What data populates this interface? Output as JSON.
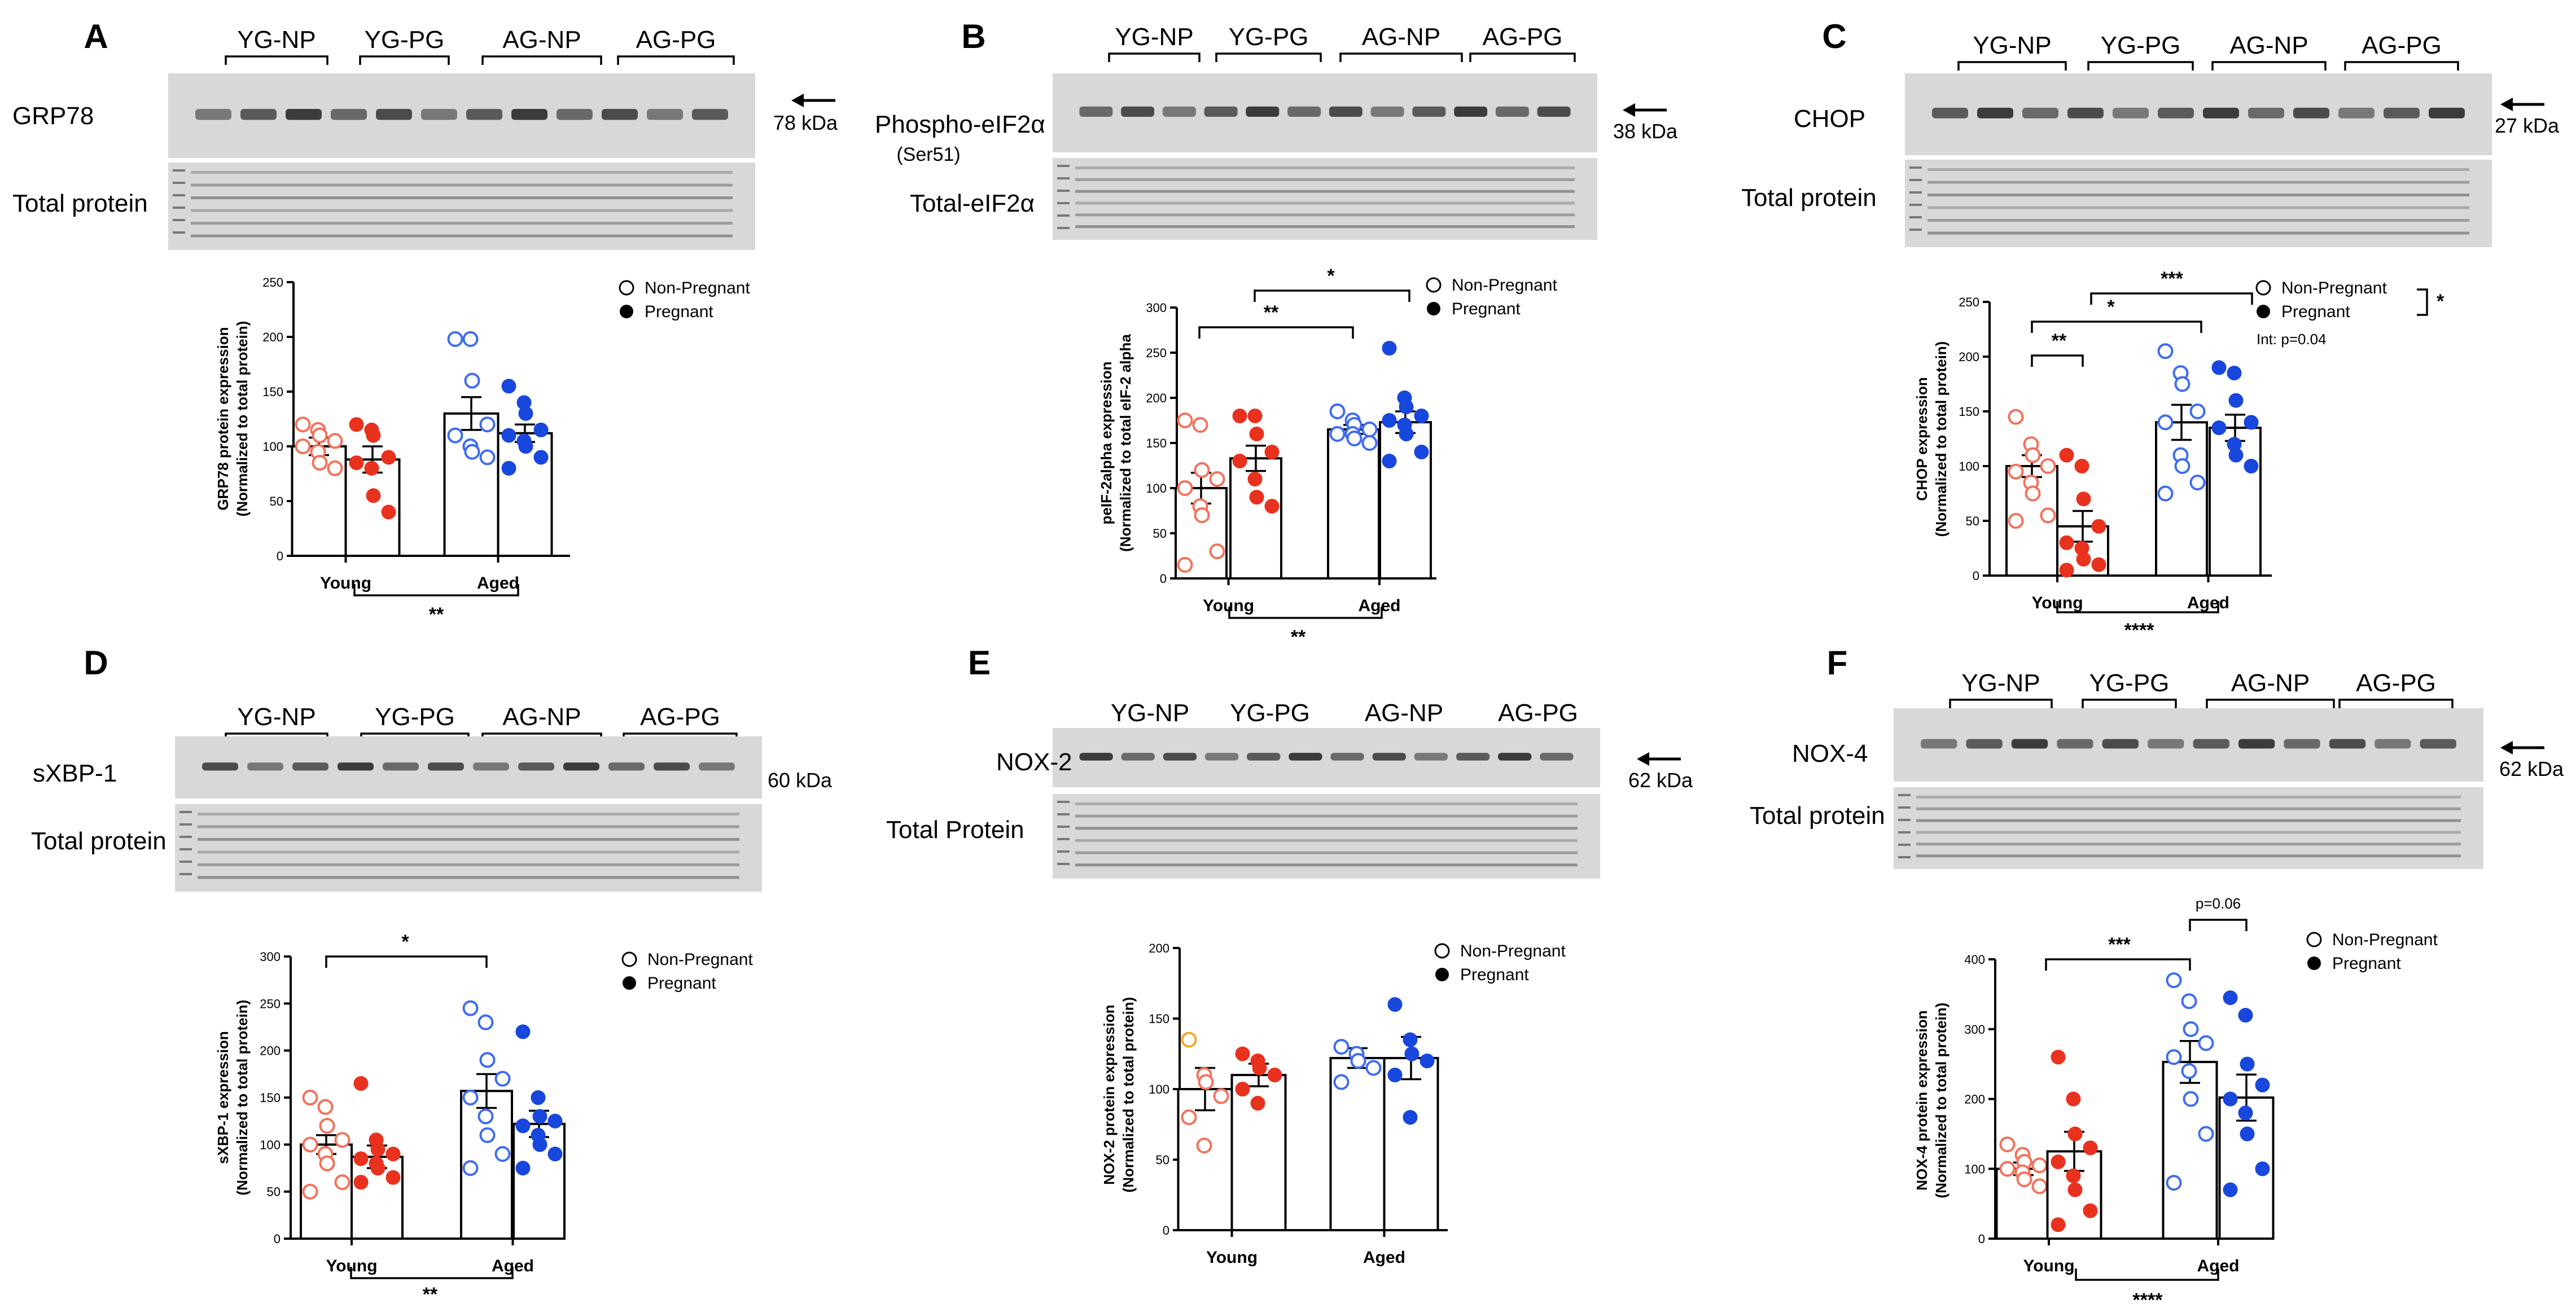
{
  "colors": {
    "young_open": "#f4715a",
    "young_filled": "#e8321e",
    "young_outlier": "#f4a628",
    "aged_open": "#3d6cf0",
    "aged_filled": "#1847dd",
    "blot_bg": "#d8d8d8",
    "band": "#2a2a2a"
  },
  "panels": [
    {
      "letter": "A",
      "group_labels": [
        "YG-NP",
        "YG-PG",
        "AG-NP",
        "AG-PG"
      ],
      "blot_top_label": "GRP78",
      "blot_top_sub": "",
      "kda": "78 kDa",
      "blot_bottom_label": "Total protein",
      "legend": [
        "Non-Pregnant",
        "Pregnant"
      ],
      "interaction_note": "",
      "bracket_labels": [
        "**"
      ]
    },
    {
      "letter": "B",
      "group_labels": [
        "YG-NP",
        "YG-PG",
        "AG-NP",
        "AG-PG"
      ],
      "blot_top_label": "Phospho-eIF2α",
      "blot_top_sub": "(Ser51)",
      "kda": "38 kDa",
      "blot_bottom_label": "Total-eIF2α",
      "legend": [
        "Non-Pregnant",
        "Pregnant"
      ],
      "interaction_note": "",
      "bracket_labels": [
        "*",
        "**",
        "**"
      ]
    },
    {
      "letter": "C",
      "group_labels": [
        "YG-NP",
        "YG-PG",
        "AG-NP",
        "AG-PG"
      ],
      "blot_top_label": "CHOP",
      "blot_top_sub": "",
      "kda": "27 kDa",
      "blot_bottom_label": "Total protein",
      "legend": [
        "Non-Pregnant",
        "Pregnant"
      ],
      "interaction_note": "Int: p=0.04",
      "bracket_labels": [
        "***",
        "*",
        "**",
        "****",
        "*"
      ]
    },
    {
      "letter": "D",
      "group_labels": [
        "YG-NP",
        "YG-PG",
        "AG-NP",
        "AG-PG"
      ],
      "blot_top_label": "sXBP-1",
      "blot_top_sub": "",
      "kda": "60 kDa",
      "blot_bottom_label": "Total protein",
      "legend": [
        "Non-Pregnant",
        "Pregnant"
      ],
      "interaction_note": "",
      "bracket_labels": [
        "*",
        "**"
      ]
    },
    {
      "letter": "E",
      "group_labels": [
        "YG-NP",
        "YG-PG",
        "AG-NP",
        "AG-PG"
      ],
      "blot_top_label": "NOX-2",
      "blot_top_sub": "",
      "kda": "62 kDa",
      "blot_bottom_label": "Total Protein",
      "legend": [
        "Non-Pregnant",
        "Pregnant"
      ],
      "interaction_note": "",
      "bracket_labels": []
    },
    {
      "letter": "F",
      "group_labels": [
        "YG-NP",
        "YG-PG",
        "AG-NP",
        "AG-PG"
      ],
      "blot_top_label": "NOX-4",
      "blot_top_sub": "",
      "kda": "62 kDa",
      "blot_bottom_label": "Total protein",
      "legend": [
        "Non-Pregnant",
        "Pregnant"
      ],
      "interaction_note": "",
      "bracket_labels": [
        "p=0.06",
        "***",
        "****"
      ]
    }
  ],
  "chart_data": [
    {
      "type": "bar",
      "panel": "A",
      "categories": [
        "Young",
        "Aged"
      ],
      "ylabel": "GRP78 protein expression\n(Normalized to total protein)",
      "ylim": [
        0,
        250
      ],
      "yticks": [
        0,
        50,
        100,
        150,
        200,
        250
      ],
      "series": [
        {
          "name": "Non-Pregnant",
          "values": [
            100,
            130
          ],
          "sem": [
            8,
            15
          ]
        },
        {
          "name": "Pregnant",
          "values": [
            88,
            112
          ],
          "sem": [
            12,
            8
          ]
        }
      ],
      "points": {
        "young_np": [
          120,
          115,
          110,
          105,
          100,
          95,
          85,
          80
        ],
        "young_pg": [
          120,
          115,
          110,
          90,
          85,
          80,
          55,
          40
        ],
        "aged_np": [
          198,
          198,
          160,
          120,
          110,
          100,
          95,
          90
        ],
        "aged_pg": [
          155,
          140,
          130,
          115,
          110,
          105,
          100,
          90,
          80
        ]
      },
      "comparisons": [
        {
          "label": "**",
          "between": "Young vs Aged"
        }
      ],
      "legend": "top-right"
    },
    {
      "type": "bar",
      "panel": "B",
      "categories": [
        "Young",
        "Aged"
      ],
      "ylabel": "peIF-2alpha expression\n(Normalized to total eIF-2 alpha",
      "ylim": [
        0,
        300
      ],
      "yticks": [
        0,
        50,
        100,
        150,
        200,
        250,
        300
      ],
      "series": [
        {
          "name": "Non-Pregnant",
          "values": [
            100,
            165
          ],
          "sem": [
            17,
            5
          ]
        },
        {
          "name": "Pregnant",
          "values": [
            133,
            173
          ],
          "sem": [
            14,
            12
          ]
        }
      ],
      "points": {
        "young_np": [
          175,
          170,
          120,
          110,
          100,
          80,
          70,
          30,
          15
        ],
        "young_pg": [
          180,
          180,
          160,
          140,
          130,
          110,
          90,
          80
        ],
        "aged_np": [
          185,
          175,
          170,
          165,
          160,
          160,
          155,
          150
        ],
        "aged_pg": [
          255,
          200,
          190,
          180,
          175,
          170,
          160,
          140,
          130
        ]
      },
      "comparisons": [
        {
          "label": "*",
          "between": "Young Pregnant vs Aged Pregnant"
        },
        {
          "label": "**",
          "between": "Young Non-Pregnant vs Aged Non-Pregnant"
        },
        {
          "label": "**",
          "between": "Young vs Aged"
        }
      ],
      "legend": "top-right"
    },
    {
      "type": "bar",
      "panel": "C",
      "categories": [
        "Young",
        "Aged"
      ],
      "ylabel": "CHOP expression\n(Normalized to total protein)",
      "ylim": [
        0,
        250
      ],
      "yticks": [
        0,
        50,
        100,
        150,
        200,
        250
      ],
      "series": [
        {
          "name": "Non-Pregnant",
          "values": [
            100,
            140
          ],
          "sem": [
            10,
            16
          ]
        },
        {
          "name": "Pregnant",
          "values": [
            45,
            135
          ],
          "sem": [
            14,
            12
          ]
        }
      ],
      "points": {
        "young_np": [
          145,
          120,
          110,
          100,
          95,
          85,
          75,
          55,
          50
        ],
        "young_pg": [
          110,
          100,
          70,
          45,
          30,
          25,
          15,
          10,
          5
        ],
        "aged_np": [
          205,
          185,
          175,
          150,
          140,
          110,
          100,
          85,
          75
        ],
        "aged_pg": [
          190,
          185,
          160,
          140,
          135,
          120,
          110,
          100
        ]
      },
      "comparisons": [
        {
          "label": "***",
          "between": "Young Pregnant vs Aged Pregnant"
        },
        {
          "label": "*",
          "between": "Young Non-Pregnant vs Aged Non-Pregnant"
        },
        {
          "label": "**",
          "between": "Young Non-Pregnant vs Young Pregnant"
        },
        {
          "label": "****",
          "between": "Young vs Aged"
        },
        {
          "label": "*",
          "between": "Non-Pregnant vs Pregnant"
        }
      ],
      "annotation": "Int: p=0.04",
      "legend": "top-right"
    },
    {
      "type": "bar",
      "panel": "D",
      "categories": [
        "Young",
        "Aged"
      ],
      "ylabel": "sXBP-1 expression\n(Normalized to total protein)",
      "ylim": [
        0,
        300
      ],
      "yticks": [
        0,
        50,
        100,
        150,
        200,
        250,
        300
      ],
      "series": [
        {
          "name": "Non-Pregnant",
          "values": [
            100,
            157
          ],
          "sem": [
            10,
            18
          ]
        },
        {
          "name": "Pregnant",
          "values": [
            87,
            122
          ],
          "sem": [
            12,
            14
          ]
        }
      ],
      "points": {
        "young_np": [
          150,
          140,
          120,
          105,
          100,
          90,
          80,
          60,
          50
        ],
        "young_pg": [
          165,
          105,
          95,
          90,
          85,
          80,
          75,
          65,
          60
        ],
        "aged_np": [
          245,
          230,
          190,
          170,
          150,
          130,
          110,
          90,
          75
        ],
        "aged_pg": [
          220,
          150,
          130,
          125,
          120,
          110,
          100,
          90,
          75
        ]
      },
      "comparisons": [
        {
          "label": "*",
          "between": "Young Non-Pregnant vs Aged Non-Pregnant"
        },
        {
          "label": "**",
          "between": "Young vs Aged"
        }
      ],
      "legend": "top-right"
    },
    {
      "type": "bar",
      "panel": "E",
      "categories": [
        "Young",
        "Aged"
      ],
      "ylabel": "NOX-2 protein expression\n(Normalized to total protein)",
      "ylim": [
        0,
        200
      ],
      "yticks": [
        0,
        50,
        100,
        150,
        200
      ],
      "series": [
        {
          "name": "Non-Pregnant",
          "values": [
            100,
            122
          ],
          "sem": [
            15,
            7
          ]
        },
        {
          "name": "Pregnant",
          "values": [
            110,
            122
          ],
          "sem": [
            8,
            15
          ]
        }
      ],
      "points": {
        "young_np": [
          135,
          110,
          105,
          95,
          80,
          60
        ],
        "young_pg": [
          125,
          120,
          115,
          110,
          100,
          90
        ],
        "aged_np": [
          130,
          125,
          120,
          115,
          105
        ],
        "aged_pg": [
          160,
          135,
          125,
          120,
          110,
          80
        ]
      },
      "comparisons": [],
      "legend": "top-right"
    },
    {
      "type": "bar",
      "panel": "F",
      "categories": [
        "Young",
        "Aged"
      ],
      "ylabel": "NOX-4 protein expression\n(Normalized to total protein)",
      "ylim": [
        0,
        400
      ],
      "yticks": [
        0,
        100,
        200,
        300,
        400
      ],
      "series": [
        {
          "name": "Non-Pregnant",
          "values": [
            100,
            253
          ],
          "sem": [
            9,
            30
          ]
        },
        {
          "name": "Pregnant",
          "values": [
            125,
            202
          ],
          "sem": [
            28,
            33
          ]
        }
      ],
      "points": {
        "young_np": [
          135,
          120,
          110,
          105,
          100,
          95,
          85,
          75
        ],
        "young_pg": [
          260,
          200,
          150,
          130,
          110,
          90,
          70,
          40,
          20
        ],
        "aged_np": [
          370,
          340,
          300,
          280,
          260,
          240,
          200,
          150,
          80
        ],
        "aged_pg": [
          345,
          320,
          250,
          220,
          200,
          180,
          150,
          100,
          70
        ]
      },
      "comparisons": [
        {
          "label": "p=0.06",
          "between": "Aged Non-Pregnant vs Aged Pregnant"
        },
        {
          "label": "***",
          "between": "Young Non-Pregnant vs Aged Non-Pregnant"
        },
        {
          "label": "****",
          "between": "Young vs Aged"
        }
      ],
      "legend": "top-right"
    }
  ]
}
